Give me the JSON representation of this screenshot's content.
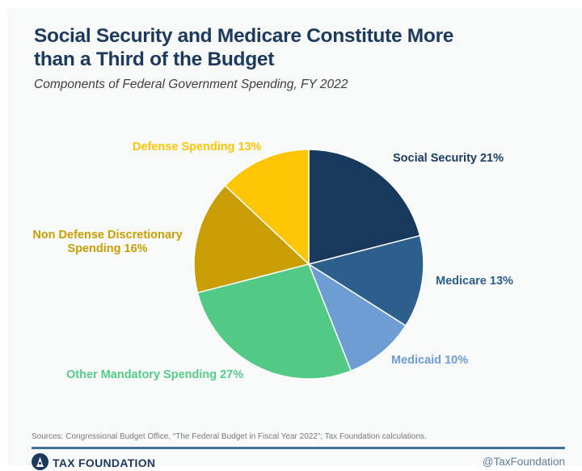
{
  "header": {
    "title": "Social Security and Medicare Constitute More than a Third of the Budget",
    "title_lines": [
      "Social Security and Medicare Constitute More",
      "than a Third of the Budget"
    ],
    "subtitle": "Components of Federal Government Spending, FY 2022"
  },
  "chart_data": {
    "type": "pie",
    "title": "Social Security and Medicare Constitute More than a Third of the Budget",
    "subtitle": "Components of Federal Government Spending, FY 2022",
    "units": "%",
    "start_angle_deg": 0,
    "direction": "clockwise",
    "legend_position": "labels-around-pie",
    "slices": [
      {
        "label": "Social Security",
        "value": 21,
        "display": "Social Security 21%",
        "color": "#17395c"
      },
      {
        "label": "Medicare",
        "value": 13,
        "display": "Medicare 13%",
        "color": "#2d5f8c"
      },
      {
        "label": "Medicaid",
        "value": 10,
        "display": "Medicaid 10%",
        "color": "#6d9dd3"
      },
      {
        "label": "Other Mandatory Spending",
        "value": 27,
        "display": "Other Mandatory Spending 27%",
        "color": "#52ca86"
      },
      {
        "label": "Non Defense Discretionary Spending",
        "value": 16,
        "display": "Non Defense Discretionary Spending 16%",
        "color": "#c89e04"
      },
      {
        "label": "Defense Spending",
        "value": 13,
        "display": "Defense Spending 13%",
        "color": "#fdc504"
      }
    ],
    "label_colors": [
      "#1c3a5e",
      "#2d5f8c",
      "#6d9dd3",
      "#55cb8b",
      "#c89e04",
      "#fdc504"
    ]
  },
  "footer": {
    "sources": "Sources: Congressional Budget Office, “The Federal Budget in Fiscal Year 2022”; Tax Foundation calculations.",
    "brand": "TAX FOUNDATION",
    "handle": "@TaxFoundation"
  }
}
